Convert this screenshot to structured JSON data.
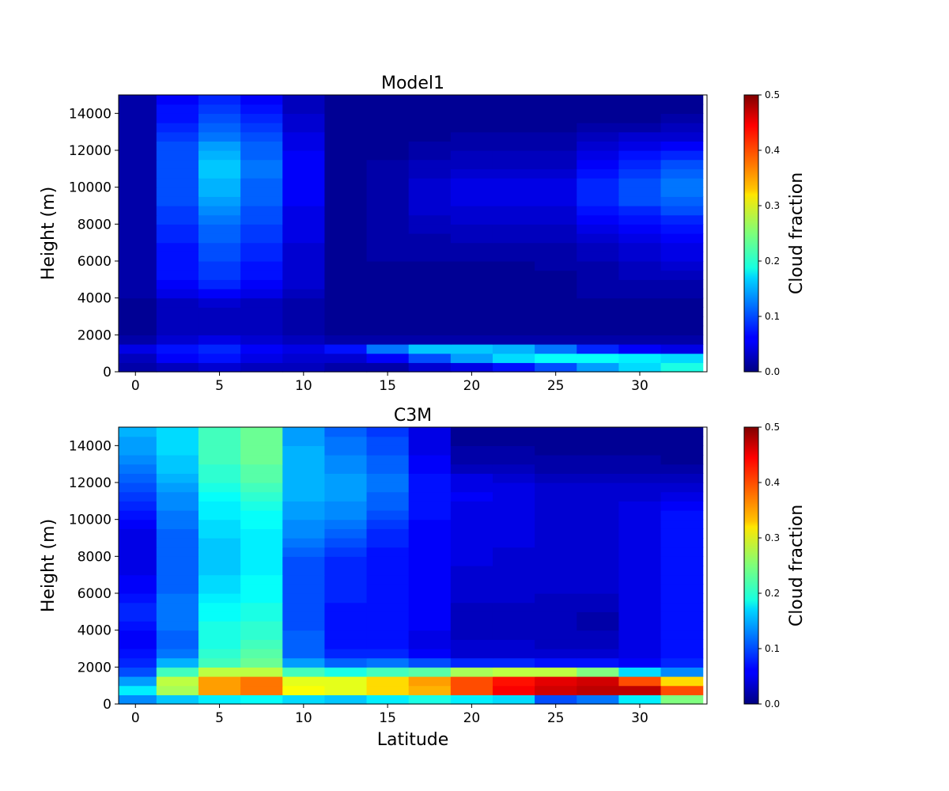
{
  "figure": {
    "xlabel": "Latitude"
  },
  "colorscale": {
    "name": "jet",
    "min": 0.0,
    "max": 0.5,
    "label": "Cloud fraction",
    "tick_labels": [
      "0.0",
      "0.1",
      "0.2",
      "0.3",
      "0.4",
      "0.5"
    ]
  },
  "chart_data": [
    {
      "type": "heatmap",
      "title": "Model1",
      "xlabel": "",
      "ylabel": "Height (m)",
      "x": [
        0,
        2.5,
        5,
        7.5,
        10,
        12.5,
        15,
        17.5,
        20,
        22.5,
        25,
        27.5,
        30,
        32.5
      ],
      "x_tick_labels": [
        "0",
        "5",
        "10",
        "15",
        "20",
        "25",
        "30"
      ],
      "xlim": [
        -1,
        34
      ],
      "y": [
        250,
        750,
        1250,
        1750,
        2250,
        2750,
        3250,
        3750,
        4250,
        4750,
        5250,
        5750,
        6250,
        6750,
        7250,
        7750,
        8250,
        8750,
        9250,
        9750,
        10250,
        10750,
        11250,
        11750,
        12250,
        12750,
        13250,
        13750,
        14250,
        14750
      ],
      "y_tick_labels": [
        "0",
        "2000",
        "4000",
        "6000",
        "8000",
        "10000",
        "12000",
        "14000"
      ],
      "ylim": [
        0,
        15000
      ],
      "colorbar_label": "Cloud fraction",
      "values": [
        [
          0.02,
          0.03,
          0.04,
          0.03,
          0.03,
          0.02,
          0.02,
          0.04,
          0.05,
          0.07,
          0.1,
          0.14,
          0.17,
          0.2
        ],
        [
          0.03,
          0.06,
          0.07,
          0.05,
          0.04,
          0.04,
          0.06,
          0.1,
          0.14,
          0.17,
          0.19,
          0.19,
          0.18,
          0.17
        ],
        [
          0.05,
          0.07,
          0.08,
          0.06,
          0.05,
          0.07,
          0.12,
          0.16,
          0.16,
          0.15,
          0.12,
          0.08,
          0.06,
          0.05
        ],
        [
          0.02,
          0.04,
          0.05,
          0.04,
          0.03,
          0.02,
          0.02,
          0.02,
          0.02,
          0.02,
          0.02,
          0.02,
          0.02,
          0.02
        ],
        [
          0.01,
          0.03,
          0.03,
          0.03,
          0.02,
          0.01,
          0.01,
          0.01,
          0.01,
          0.01,
          0.01,
          0.01,
          0.01,
          0.01
        ],
        [
          0.01,
          0.03,
          0.03,
          0.03,
          0.02,
          0.01,
          0.01,
          0.01,
          0.01,
          0.01,
          0.01,
          0.01,
          0.01,
          0.01
        ],
        [
          0.01,
          0.03,
          0.03,
          0.03,
          0.02,
          0.01,
          0.01,
          0.01,
          0.01,
          0.01,
          0.01,
          0.01,
          0.01,
          0.01
        ],
        [
          0.01,
          0.03,
          0.04,
          0.03,
          0.02,
          0.01,
          0.01,
          0.01,
          0.01,
          0.01,
          0.01,
          0.01,
          0.01,
          0.01
        ],
        [
          0.02,
          0.05,
          0.06,
          0.05,
          0.03,
          0.01,
          0.01,
          0.01,
          0.01,
          0.01,
          0.01,
          0.02,
          0.02,
          0.02
        ],
        [
          0.02,
          0.06,
          0.08,
          0.06,
          0.04,
          0.01,
          0.01,
          0.01,
          0.01,
          0.01,
          0.01,
          0.02,
          0.02,
          0.02
        ],
        [
          0.02,
          0.07,
          0.09,
          0.07,
          0.04,
          0.01,
          0.01,
          0.01,
          0.01,
          0.01,
          0.01,
          0.02,
          0.03,
          0.03
        ],
        [
          0.02,
          0.07,
          0.09,
          0.07,
          0.04,
          0.01,
          0.01,
          0.01,
          0.01,
          0.01,
          0.02,
          0.02,
          0.03,
          0.04
        ],
        [
          0.02,
          0.07,
          0.1,
          0.08,
          0.04,
          0.01,
          0.02,
          0.02,
          0.02,
          0.02,
          0.02,
          0.03,
          0.04,
          0.05
        ],
        [
          0.02,
          0.07,
          0.1,
          0.08,
          0.04,
          0.01,
          0.02,
          0.02,
          0.02,
          0.02,
          0.02,
          0.03,
          0.04,
          0.05
        ],
        [
          0.02,
          0.08,
          0.11,
          0.09,
          0.05,
          0.01,
          0.02,
          0.02,
          0.03,
          0.03,
          0.03,
          0.04,
          0.05,
          0.06
        ],
        [
          0.02,
          0.08,
          0.11,
          0.09,
          0.05,
          0.01,
          0.02,
          0.03,
          0.03,
          0.03,
          0.03,
          0.05,
          0.06,
          0.07
        ],
        [
          0.02,
          0.09,
          0.12,
          0.1,
          0.05,
          0.01,
          0.02,
          0.03,
          0.04,
          0.04,
          0.04,
          0.06,
          0.07,
          0.08
        ],
        [
          0.02,
          0.09,
          0.13,
          0.1,
          0.05,
          0.01,
          0.02,
          0.04,
          0.04,
          0.04,
          0.04,
          0.07,
          0.08,
          0.1
        ],
        [
          0.02,
          0.1,
          0.14,
          0.11,
          0.06,
          0.01,
          0.02,
          0.04,
          0.05,
          0.05,
          0.05,
          0.08,
          0.1,
          0.11
        ],
        [
          0.02,
          0.1,
          0.15,
          0.11,
          0.06,
          0.01,
          0.02,
          0.04,
          0.05,
          0.05,
          0.05,
          0.08,
          0.1,
          0.12
        ],
        [
          0.02,
          0.1,
          0.15,
          0.11,
          0.06,
          0.01,
          0.02,
          0.04,
          0.05,
          0.05,
          0.05,
          0.08,
          0.1,
          0.12
        ],
        [
          0.02,
          0.1,
          0.16,
          0.12,
          0.06,
          0.01,
          0.02,
          0.03,
          0.04,
          0.04,
          0.04,
          0.07,
          0.09,
          0.11
        ],
        [
          0.02,
          0.1,
          0.16,
          0.12,
          0.06,
          0.01,
          0.02,
          0.03,
          0.03,
          0.03,
          0.03,
          0.06,
          0.08,
          0.1
        ],
        [
          0.02,
          0.1,
          0.15,
          0.11,
          0.06,
          0.01,
          0.01,
          0.02,
          0.03,
          0.03,
          0.03,
          0.05,
          0.07,
          0.08
        ],
        [
          0.02,
          0.1,
          0.14,
          0.11,
          0.05,
          0.01,
          0.01,
          0.02,
          0.02,
          0.02,
          0.02,
          0.04,
          0.05,
          0.06
        ],
        [
          0.02,
          0.09,
          0.12,
          0.1,
          0.05,
          0.01,
          0.01,
          0.01,
          0.02,
          0.02,
          0.02,
          0.03,
          0.04,
          0.04
        ],
        [
          0.02,
          0.08,
          0.11,
          0.09,
          0.04,
          0.01,
          0.01,
          0.01,
          0.01,
          0.01,
          0.01,
          0.02,
          0.02,
          0.03
        ],
        [
          0.02,
          0.07,
          0.1,
          0.08,
          0.04,
          0.01,
          0.01,
          0.01,
          0.01,
          0.01,
          0.01,
          0.01,
          0.01,
          0.02
        ],
        [
          0.02,
          0.07,
          0.09,
          0.07,
          0.03,
          0.01,
          0.01,
          0.01,
          0.01,
          0.01,
          0.01,
          0.01,
          0.01,
          0.01
        ],
        [
          0.02,
          0.06,
          0.08,
          0.06,
          0.03,
          0.01,
          0.01,
          0.01,
          0.01,
          0.01,
          0.01,
          0.01,
          0.01,
          0.01
        ]
      ]
    },
    {
      "type": "heatmap",
      "title": "C3M",
      "xlabel": "Latitude",
      "ylabel": "Height (m)",
      "x": [
        0,
        2.5,
        5,
        7.5,
        10,
        12.5,
        15,
        17.5,
        20,
        22.5,
        25,
        27.5,
        30,
        32.5
      ],
      "x_tick_labels": [
        "0",
        "5",
        "10",
        "15",
        "20",
        "25",
        "30"
      ],
      "xlim": [
        -1,
        34
      ],
      "y": [
        250,
        750,
        1250,
        1750,
        2250,
        2750,
        3250,
        3750,
        4250,
        4750,
        5250,
        5750,
        6250,
        6750,
        7250,
        7750,
        8250,
        8750,
        9250,
        9750,
        10250,
        10750,
        11250,
        11750,
        12250,
        12750,
        13250,
        13750,
        14250,
        14750
      ],
      "y_tick_labels": [
        "0",
        "2000",
        "4000",
        "6000",
        "8000",
        "10000",
        "12000",
        "14000"
      ],
      "ylim": [
        0,
        15000
      ],
      "colorbar_label": "Cloud fraction",
      "values": [
        [
          0.13,
          0.16,
          0.18,
          0.19,
          0.17,
          0.16,
          0.18,
          0.2,
          0.18,
          0.17,
          0.1,
          0.12,
          0.18,
          0.25
        ],
        [
          0.18,
          0.27,
          0.36,
          0.38,
          0.31,
          0.3,
          0.33,
          0.35,
          0.4,
          0.44,
          0.46,
          0.47,
          0.47,
          0.4
        ],
        [
          0.14,
          0.28,
          0.36,
          0.38,
          0.3,
          0.3,
          0.33,
          0.36,
          0.4,
          0.43,
          0.45,
          0.46,
          0.4,
          0.33
        ],
        [
          0.1,
          0.22,
          0.28,
          0.28,
          0.22,
          0.2,
          0.22,
          0.23,
          0.27,
          0.28,
          0.28,
          0.25,
          0.17,
          0.13
        ],
        [
          0.08,
          0.15,
          0.22,
          0.24,
          0.14,
          0.11,
          0.12,
          0.1,
          0.08,
          0.08,
          0.07,
          0.07,
          0.06,
          0.08
        ],
        [
          0.07,
          0.12,
          0.21,
          0.23,
          0.11,
          0.08,
          0.08,
          0.06,
          0.04,
          0.04,
          0.04,
          0.04,
          0.05,
          0.07
        ],
        [
          0.06,
          0.11,
          0.2,
          0.22,
          0.11,
          0.07,
          0.07,
          0.05,
          0.04,
          0.04,
          0.03,
          0.03,
          0.05,
          0.07
        ],
        [
          0.06,
          0.11,
          0.2,
          0.21,
          0.11,
          0.07,
          0.07,
          0.05,
          0.03,
          0.03,
          0.03,
          0.03,
          0.05,
          0.07
        ],
        [
          0.07,
          0.12,
          0.2,
          0.21,
          0.1,
          0.07,
          0.07,
          0.06,
          0.03,
          0.03,
          0.03,
          0.02,
          0.05,
          0.07
        ],
        [
          0.08,
          0.12,
          0.19,
          0.2,
          0.1,
          0.07,
          0.07,
          0.06,
          0.03,
          0.03,
          0.03,
          0.02,
          0.05,
          0.07
        ],
        [
          0.08,
          0.12,
          0.19,
          0.2,
          0.1,
          0.07,
          0.07,
          0.06,
          0.03,
          0.03,
          0.03,
          0.03,
          0.05,
          0.07
        ],
        [
          0.07,
          0.12,
          0.18,
          0.19,
          0.1,
          0.08,
          0.07,
          0.06,
          0.04,
          0.04,
          0.03,
          0.03,
          0.05,
          0.07
        ],
        [
          0.06,
          0.11,
          0.17,
          0.19,
          0.1,
          0.08,
          0.07,
          0.06,
          0.04,
          0.04,
          0.04,
          0.04,
          0.05,
          0.07
        ],
        [
          0.06,
          0.11,
          0.17,
          0.19,
          0.1,
          0.08,
          0.07,
          0.06,
          0.04,
          0.04,
          0.04,
          0.04,
          0.05,
          0.07
        ],
        [
          0.05,
          0.11,
          0.16,
          0.18,
          0.1,
          0.08,
          0.07,
          0.06,
          0.04,
          0.04,
          0.04,
          0.04,
          0.05,
          0.07
        ],
        [
          0.05,
          0.11,
          0.16,
          0.18,
          0.1,
          0.08,
          0.07,
          0.06,
          0.05,
          0.04,
          0.04,
          0.04,
          0.05,
          0.07
        ],
        [
          0.05,
          0.11,
          0.16,
          0.18,
          0.11,
          0.09,
          0.07,
          0.06,
          0.05,
          0.04,
          0.04,
          0.04,
          0.05,
          0.07
        ],
        [
          0.05,
          0.11,
          0.16,
          0.18,
          0.12,
          0.1,
          0.08,
          0.06,
          0.05,
          0.05,
          0.04,
          0.04,
          0.05,
          0.07
        ],
        [
          0.05,
          0.11,
          0.17,
          0.18,
          0.13,
          0.11,
          0.08,
          0.06,
          0.05,
          0.05,
          0.04,
          0.04,
          0.05,
          0.07
        ],
        [
          0.06,
          0.12,
          0.17,
          0.19,
          0.13,
          0.12,
          0.09,
          0.06,
          0.05,
          0.05,
          0.04,
          0.04,
          0.05,
          0.07
        ],
        [
          0.07,
          0.12,
          0.18,
          0.19,
          0.14,
          0.13,
          0.1,
          0.07,
          0.05,
          0.05,
          0.04,
          0.04,
          0.05,
          0.07
        ],
        [
          0.08,
          0.13,
          0.18,
          0.2,
          0.14,
          0.13,
          0.11,
          0.07,
          0.05,
          0.05,
          0.04,
          0.04,
          0.05,
          0.06
        ],
        [
          0.09,
          0.13,
          0.19,
          0.21,
          0.15,
          0.14,
          0.11,
          0.07,
          0.06,
          0.05,
          0.04,
          0.04,
          0.04,
          0.05
        ],
        [
          0.1,
          0.14,
          0.2,
          0.22,
          0.15,
          0.14,
          0.12,
          0.07,
          0.05,
          0.05,
          0.04,
          0.04,
          0.04,
          0.04
        ],
        [
          0.11,
          0.15,
          0.21,
          0.23,
          0.15,
          0.14,
          0.12,
          0.07,
          0.05,
          0.04,
          0.03,
          0.03,
          0.03,
          0.03
        ],
        [
          0.12,
          0.16,
          0.21,
          0.23,
          0.15,
          0.13,
          0.11,
          0.06,
          0.03,
          0.03,
          0.02,
          0.02,
          0.02,
          0.02
        ],
        [
          0.13,
          0.16,
          0.22,
          0.24,
          0.15,
          0.13,
          0.11,
          0.06,
          0.02,
          0.02,
          0.02,
          0.02,
          0.02,
          0.01
        ],
        [
          0.14,
          0.17,
          0.22,
          0.24,
          0.15,
          0.12,
          0.1,
          0.05,
          0.02,
          0.02,
          0.01,
          0.01,
          0.01,
          0.01
        ],
        [
          0.14,
          0.17,
          0.22,
          0.24,
          0.14,
          0.12,
          0.1,
          0.05,
          0.01,
          0.01,
          0.01,
          0.01,
          0.01,
          0.01
        ],
        [
          0.15,
          0.17,
          0.22,
          0.24,
          0.14,
          0.11,
          0.09,
          0.05,
          0.01,
          0.01,
          0.01,
          0.01,
          0.01,
          0.01
        ]
      ]
    }
  ]
}
